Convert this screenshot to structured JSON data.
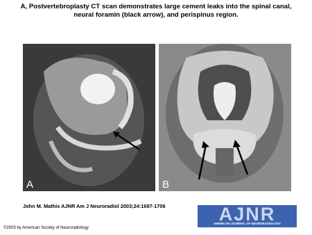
{
  "header": {
    "title": "A, Postvertebroplasty CT scan demonstrates large cement leaks into the spinal canal, neural foramin (black arrow), and perispinus region."
  },
  "panels": [
    {
      "label": "A"
    },
    {
      "label": "B"
    }
  ],
  "citation": "John M. Mathis AJNR Am J Neuroradiol 2003;24:1697-1706",
  "logo": {
    "name": "AJNR",
    "subtitle": "AMERICAN JOURNAL OF NEURORADIOLOGY"
  },
  "copyright": "©2003 by American Society of Neuroradiology"
}
